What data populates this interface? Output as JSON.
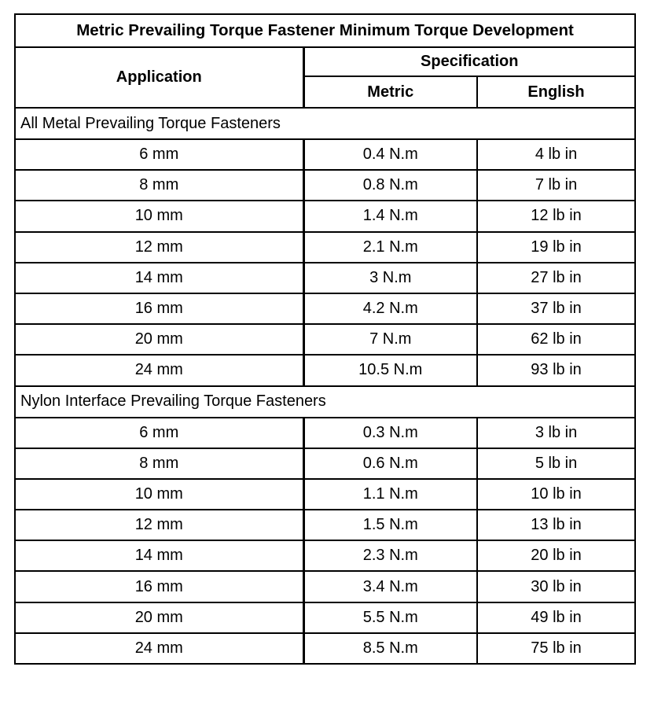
{
  "title": "Metric Prevailing Torque Fastener Minimum Torque Development",
  "headers": {
    "application": "Application",
    "specification": "Specification",
    "metric": "Metric",
    "english": "English"
  },
  "sections": [
    {
      "name": "All Metal Prevailing Torque Fasteners",
      "rows": [
        [
          "6 mm",
          "0.4 N.m",
          "4 lb in"
        ],
        [
          "8 mm",
          "0.8 N.m",
          "7 lb in"
        ],
        [
          "10 mm",
          "1.4 N.m",
          "12 lb in"
        ],
        [
          "12 mm",
          "2.1 N.m",
          "19 lb in"
        ],
        [
          "14 mm",
          "3 N.m",
          "27 lb in"
        ],
        [
          "16 mm",
          "4.2 N.m",
          "37 lb in"
        ],
        [
          "20 mm",
          "7 N.m",
          "62 lb in"
        ],
        [
          "24 mm",
          "10.5 N.m",
          "93 lb in"
        ]
      ]
    },
    {
      "name": "Nylon Interface Prevailing Torque Fasteners",
      "rows": [
        [
          "6 mm",
          "0.3 N.m",
          "3 lb in"
        ],
        [
          "8 mm",
          "0.6 N.m",
          "5 lb in"
        ],
        [
          "10 mm",
          "1.1 N.m",
          "10 lb in"
        ],
        [
          "12 mm",
          "1.5 N.m",
          "13 lb in"
        ],
        [
          "14 mm",
          "2.3 N.m",
          "20 lb in"
        ],
        [
          "16 mm",
          "3.4 N.m",
          "30 lb in"
        ],
        [
          "20 mm",
          "5.5 N.m",
          "49 lb in"
        ],
        [
          "24 mm",
          "8.5 N.m",
          "75 lb in"
        ]
      ]
    }
  ]
}
